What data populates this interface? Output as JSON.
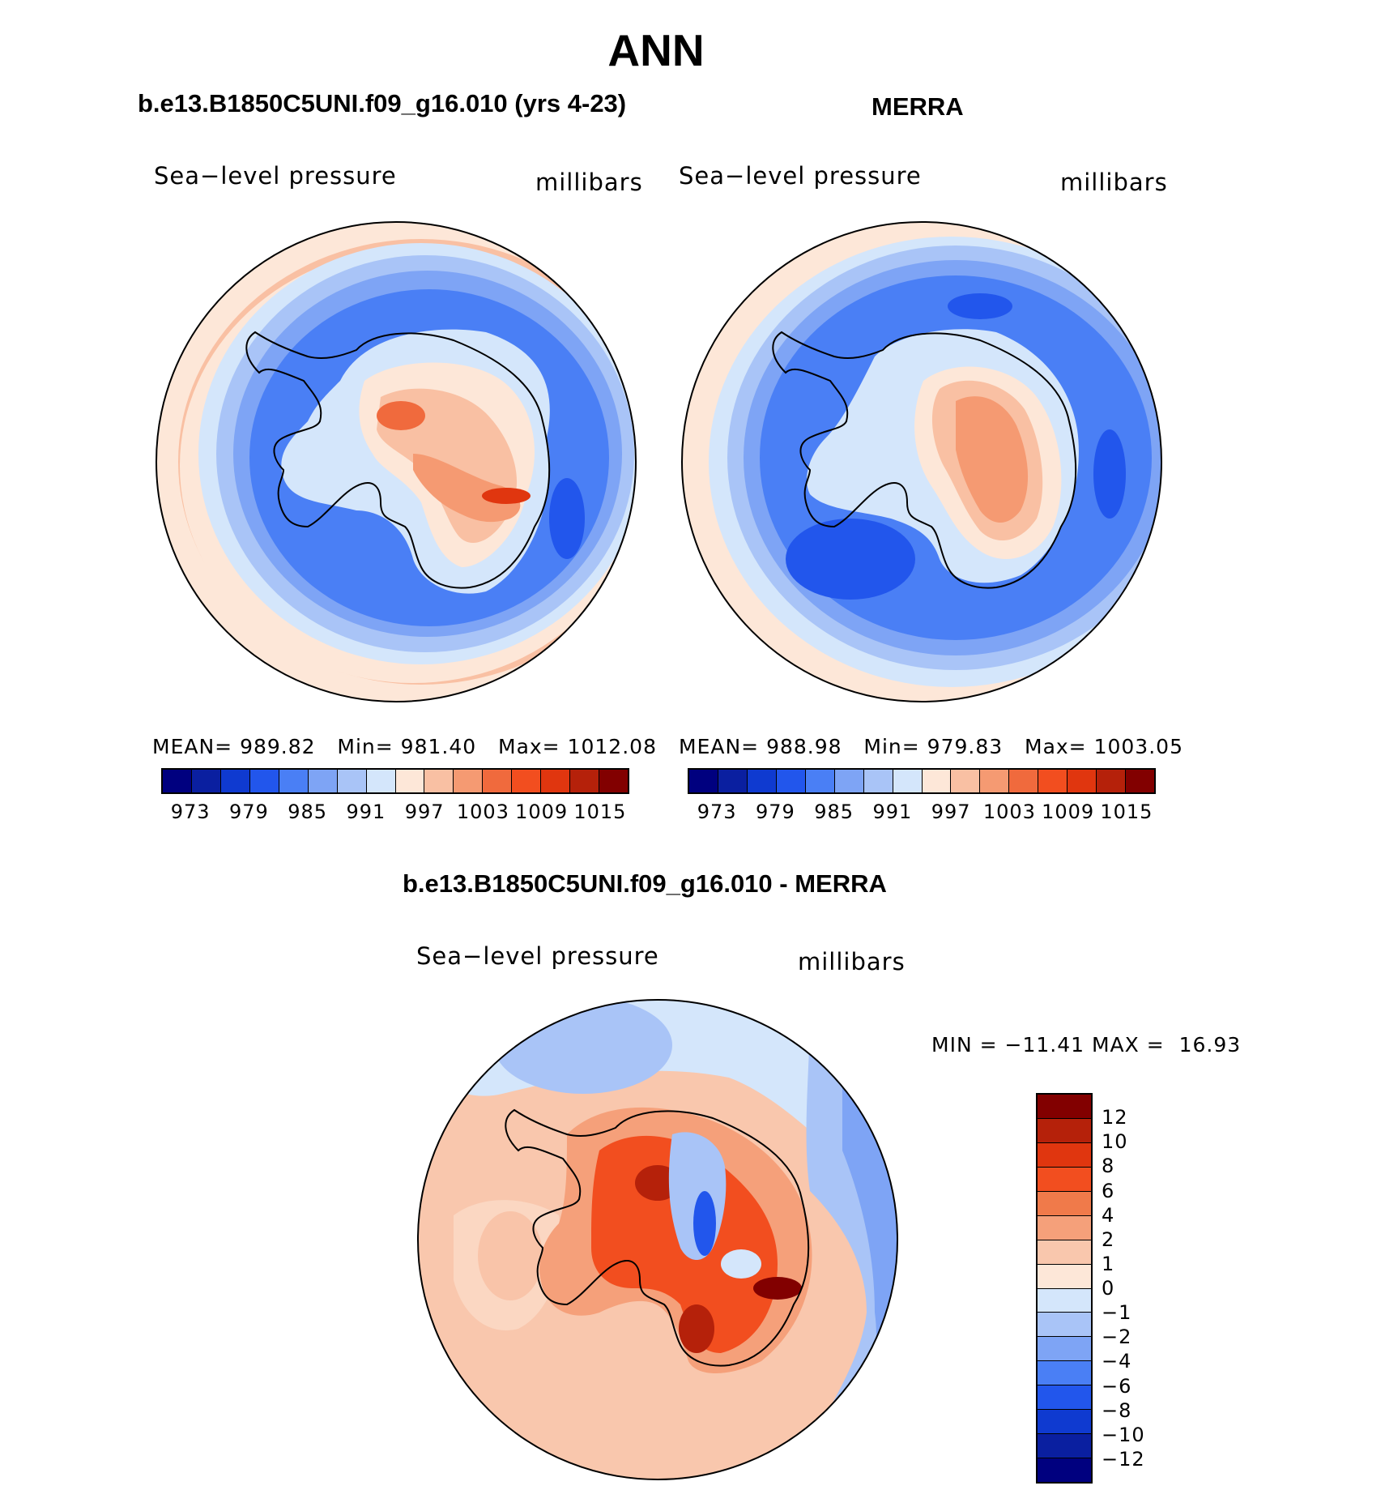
{
  "title": "ANN",
  "colors": {
    "abs_palette": [
      "#00007f",
      "#0a1fa0",
      "#0f3ad0",
      "#2256ec",
      "#4a7ff5",
      "#7ea4f5",
      "#a9c4f7",
      "#d4e6fb",
      "#fde7d8",
      "#f9c0a3",
      "#f59a72",
      "#f06a3d",
      "#f24e1f",
      "#e0360f",
      "#b5210a",
      "#820000"
    ],
    "diff_palette": [
      "#820000",
      "#b5210a",
      "#e0360f",
      "#f24e1f",
      "#f07a4a",
      "#f5a07a",
      "#f9c7ad",
      "#fde7d8",
      "#d4e6fb",
      "#a9c4f7",
      "#7ea4f5",
      "#4a7ff5",
      "#2256ec",
      "#0f3ad0",
      "#0a1fa0",
      "#00007f"
    ],
    "land_outline": "#000000"
  },
  "chart_data": [
    {
      "type": "heatmap",
      "projection": "south-polar-stereographic",
      "title": "b.e13.B1850C5UNI.f09_g16.010 (yrs 4-23)",
      "left_label": "Sea−level pressure",
      "right_label": "millibars",
      "stats": {
        "mean_label": "MEAN=",
        "mean": "989.82",
        "min_label": "Min=",
        "min": "981.40",
        "max_label": "Max=",
        "max": "1012.08"
      },
      "colorbar_ticks": [
        "973",
        "979",
        "985",
        "991",
        "997",
        "1003",
        "1009",
        "1015"
      ]
    },
    {
      "type": "heatmap",
      "projection": "south-polar-stereographic",
      "title": "MERRA",
      "left_label": "Sea−level pressure",
      "right_label": "millibars",
      "stats": {
        "mean_label": "MEAN=",
        "mean": "988.98",
        "min_label": "Min=",
        "min": "979.83",
        "max_label": "Max=",
        "max": "1003.05"
      },
      "colorbar_ticks": [
        "973",
        "979",
        "985",
        "991",
        "997",
        "1003",
        "1009",
        "1015"
      ]
    },
    {
      "type": "heatmap",
      "projection": "south-polar-stereographic",
      "title": "b.e13.B1850C5UNI.f09_g16.010 - MERRA",
      "left_label": "Sea−level pressure",
      "right_label": "millibars",
      "stats": {
        "min_label": "MIN =",
        "min": "−11.41",
        "max_label": "MAX =",
        "max": "16.93"
      },
      "colorbar_ticks": [
        "12",
        "10",
        "8",
        "6",
        "4",
        "2",
        "1",
        "0",
        "−1",
        "−2",
        "−4",
        "−6",
        "−8",
        "−10",
        "−12"
      ]
    }
  ]
}
